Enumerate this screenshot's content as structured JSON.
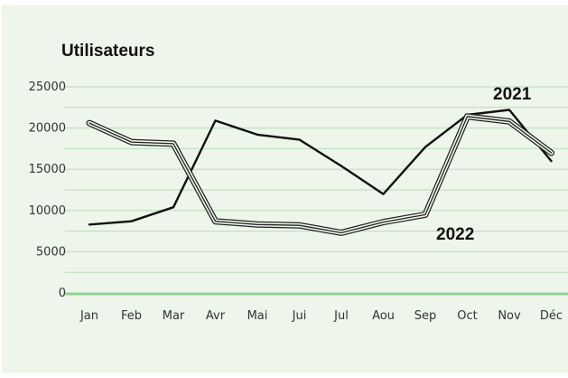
{
  "chart_data": {
    "type": "line",
    "title": "Utilisateurs",
    "xlabel": "",
    "ylabel": "",
    "categories": [
      "Jan",
      "Feb",
      "Mar",
      "Avr",
      "Mai",
      "Jui",
      "Jul",
      "Aou",
      "Sep",
      "Oct",
      "Nov",
      "Déc"
    ],
    "ylim": [
      0,
      25000
    ],
    "yticks": [
      0,
      5000,
      10000,
      15000,
      20000,
      25000
    ],
    "grid": true,
    "series": [
      {
        "name": "2021",
        "style": "solid",
        "color": "#111111",
        "values": [
          8300,
          8700,
          10400,
          20900,
          19200,
          18600,
          15400,
          12000,
          17700,
          21600,
          22200,
          16000
        ]
      },
      {
        "name": "2022",
        "style": "triple",
        "color": "#222222",
        "values": [
          20600,
          18300,
          18100,
          8700,
          8300,
          8200,
          7300,
          8600,
          9500,
          21400,
          20800,
          17000
        ]
      }
    ]
  },
  "colors": {
    "panel": "#eef5ea",
    "grid": "#b9dcb9",
    "baseline": "#8fd28f"
  }
}
